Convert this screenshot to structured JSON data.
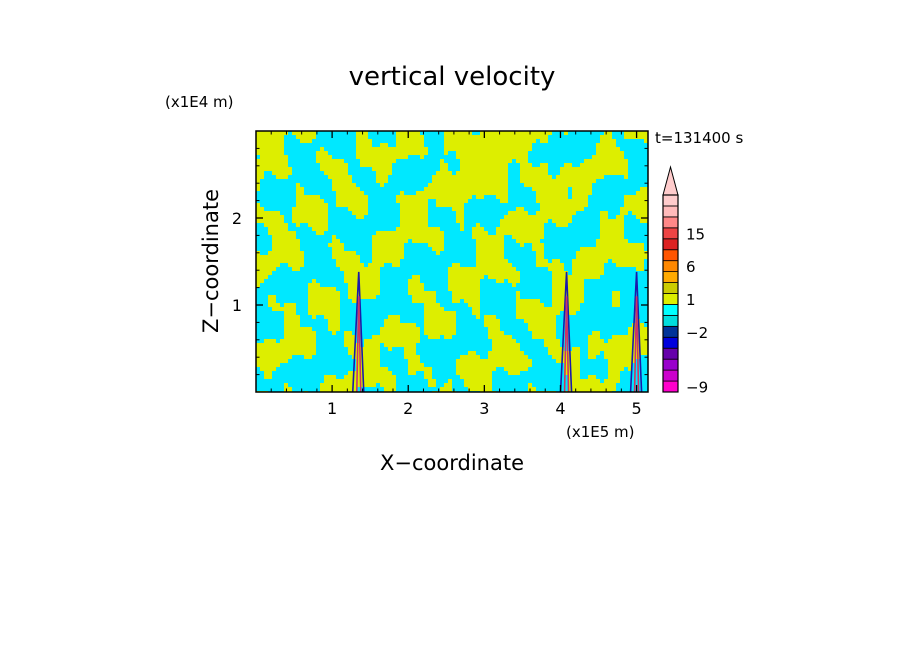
{
  "chart_data": {
    "type": "heatmap",
    "title": "vertical velocity",
    "xlabel": "X−coordinate",
    "ylabel": "Z−coordinate",
    "x_unit": "(x1E5 m)",
    "y_unit": "(x1E4 m)",
    "time_label": "t=131400 s",
    "xlim": [
      0,
      5.15
    ],
    "ylim": [
      0,
      3.0
    ],
    "x_ticks": [
      {
        "value": 1,
        "label": "1"
      },
      {
        "value": 2,
        "label": "2"
      },
      {
        "value": 3,
        "label": "3"
      },
      {
        "value": 4,
        "label": "4"
      },
      {
        "value": 5,
        "label": "5"
      }
    ],
    "y_ticks": [
      {
        "value": 1,
        "label": "1"
      },
      {
        "value": 2,
        "label": "2"
      }
    ],
    "field_colors": {
      "positive": "#ddee00",
      "negative": "#00e8ff",
      "strong_updraft": "#cc3366",
      "strong_downdraft": "#1a1aaa"
    },
    "plumes_x": [
      1.35,
      4.08,
      5.0
    ],
    "colorbar": {
      "levels": [
        -9,
        -7,
        -5,
        -4,
        -3,
        -2,
        -1,
        0,
        1,
        2,
        3,
        6,
        9,
        12,
        15,
        18,
        21,
        24
      ],
      "colors": [
        "#ff00cc",
        "#cc00cc",
        "#9900cc",
        "#6600aa",
        "#0000dd",
        "#003399",
        "#00dddd",
        "#00ffff",
        "#ddee00",
        "#cccc00",
        "#ffaa00",
        "#ff8800",
        "#ff5500",
        "#dd2222",
        "#ee4444",
        "#ff8888",
        "#ffbbbb",
        "#ffcccc"
      ],
      "labels": [
        {
          "value": 15,
          "label": "15"
        },
        {
          "value": 6,
          "label": "6"
        },
        {
          "value": 1,
          "label": "1"
        },
        {
          "value": -2,
          "label": "−2"
        },
        {
          "value": -9,
          "label": "−9"
        }
      ]
    }
  }
}
